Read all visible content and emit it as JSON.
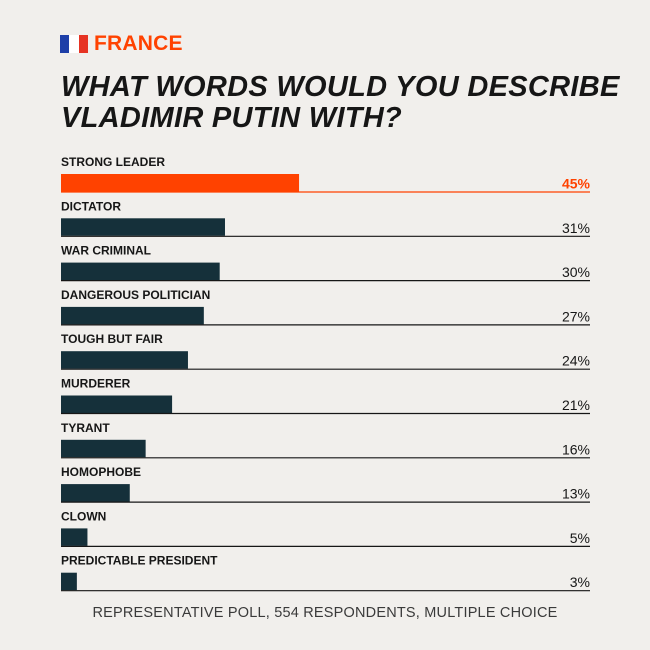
{
  "header": {
    "country": "FRANCE",
    "flag_colors": [
      "#1e3fa8",
      "#ffffff",
      "#e63323"
    ]
  },
  "title": "WHAT WORDS WOULD YOU DESCRIBE VLADIMIR PUTIN WITH?",
  "footer": "REPRESENTATIVE POLL, 554 RESPONDENTS, MULTIPLE CHOICE",
  "colors": {
    "highlight": "#ff4200",
    "bar": "#15303a",
    "axis": "#161616",
    "text": "#161616"
  },
  "chart_data": {
    "type": "bar",
    "orientation": "horizontal",
    "categories": [
      "STRONG LEADER",
      "DICTATOR",
      "WAR CRIMINAL",
      "DANGEROUS POLITICIAN",
      "TOUGH BUT FAIR",
      "MURDERER",
      "TYRANT",
      "HOMOPHOBE",
      "CLOWN",
      "PREDICTABLE PRESIDENT"
    ],
    "values": [
      45,
      31,
      30,
      27,
      24,
      21,
      16,
      13,
      5,
      3
    ],
    "value_labels": [
      "45%",
      "31%",
      "30%",
      "27%",
      "24%",
      "21%",
      "16%",
      "13%",
      "5%",
      "3%"
    ],
    "highlighted_index": 0,
    "xlim": [
      0,
      100
    ],
    "unit": "%",
    "grid": false,
    "legend": "none"
  }
}
